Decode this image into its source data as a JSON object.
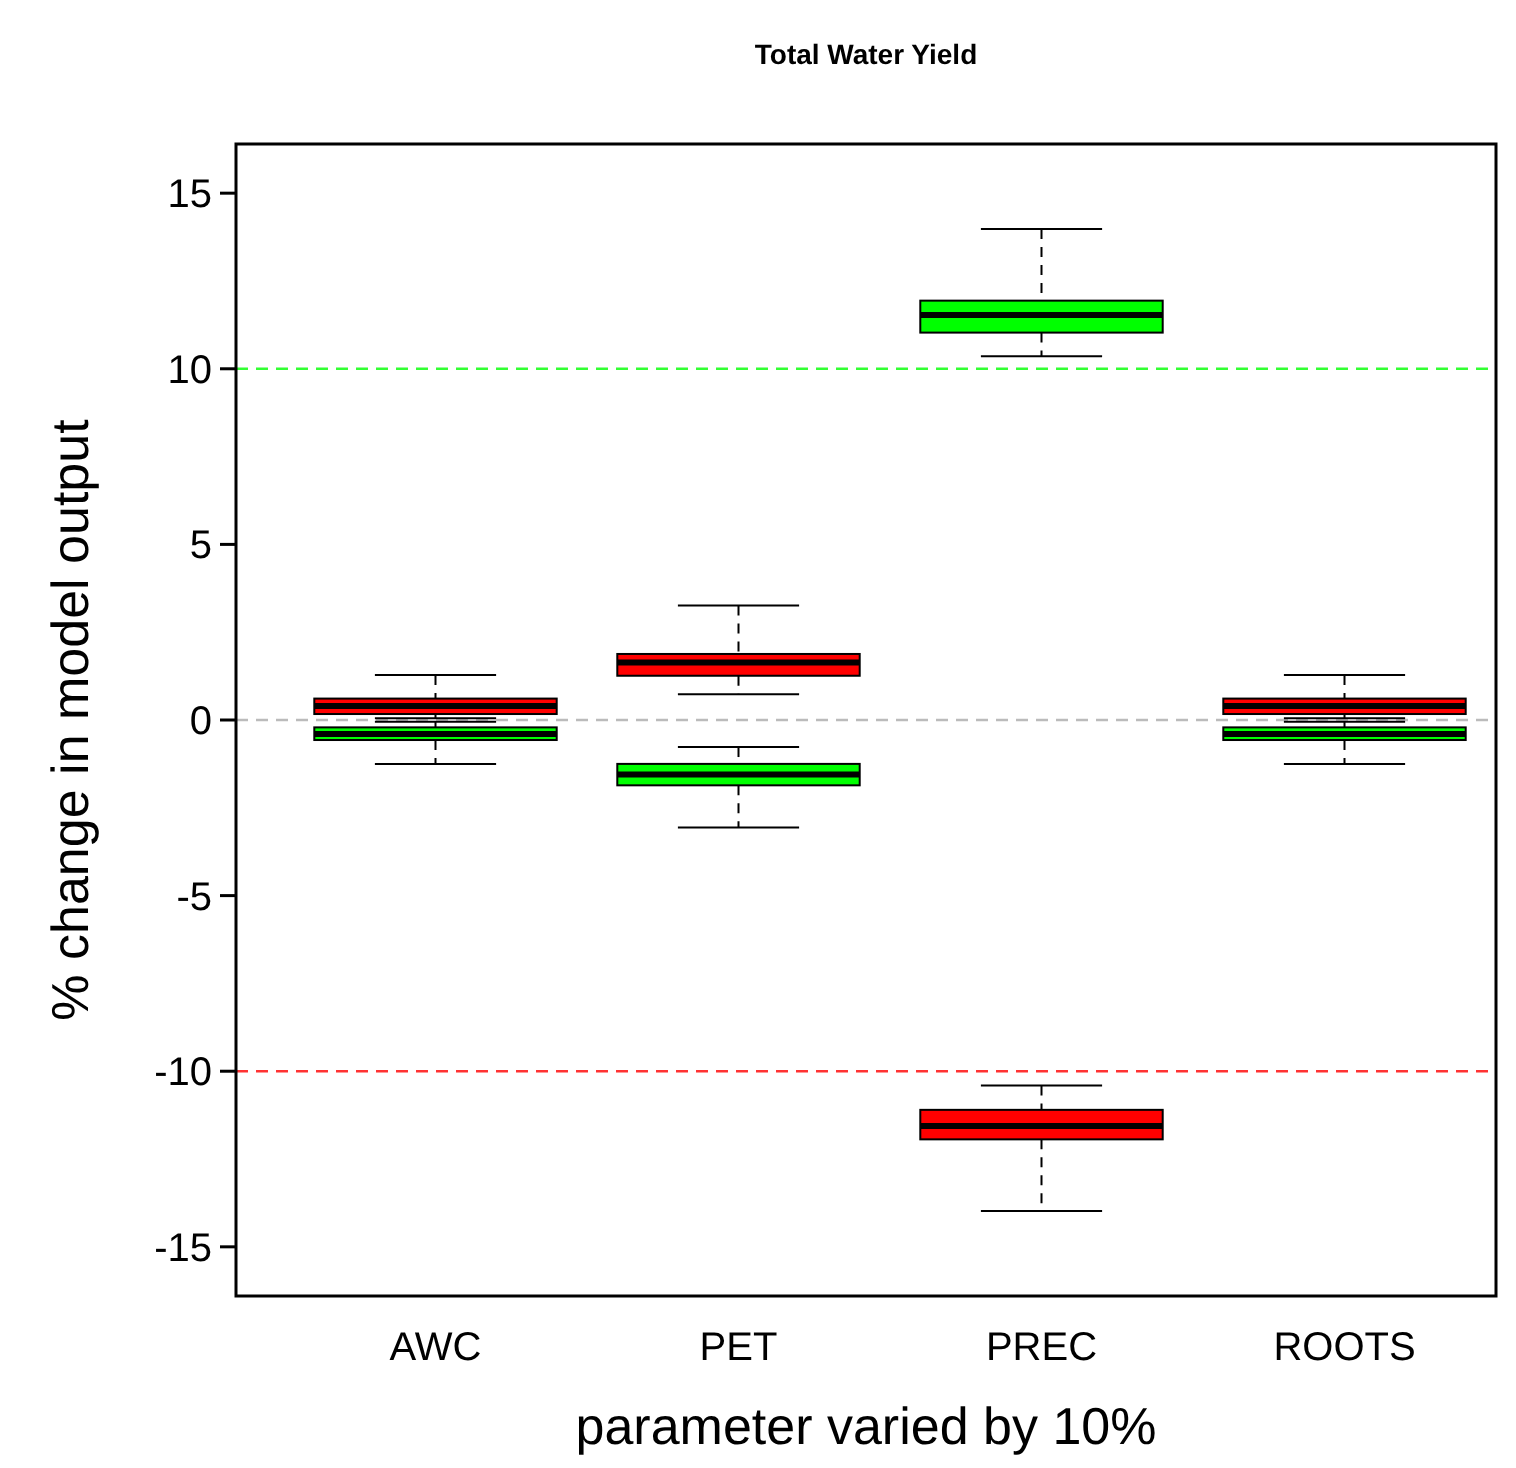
{
  "chart_data": {
    "type": "box",
    "title": "Total Water Yield",
    "xlabel": "parameter varied by 10%",
    "ylabel": "% change in model output",
    "categories": [
      "AWC",
      "PET",
      "PREC",
      "ROOTS"
    ],
    "series": [
      {
        "color": "#ff0000",
        "boxes": [
          {
            "low": 0.05,
            "q1": 0.17,
            "median": 0.4,
            "q3": 0.61,
            "high": 1.28
          },
          {
            "low": 0.73,
            "q1": 1.26,
            "median": 1.64,
            "q3": 1.88,
            "high": 3.26
          },
          {
            "low": -13.98,
            "q1": -11.94,
            "median": -11.56,
            "q3": -11.1,
            "high": -10.41
          },
          {
            "low": 0.05,
            "q1": 0.17,
            "median": 0.4,
            "q3": 0.61,
            "high": 1.28
          }
        ]
      },
      {
        "color": "#00ff00",
        "boxes": [
          {
            "low": -1.25,
            "q1": -0.57,
            "median": -0.4,
            "q3": -0.21,
            "high": -0.05
          },
          {
            "low": -3.06,
            "q1": -1.86,
            "median": -1.55,
            "q3": -1.25,
            "high": -0.77
          },
          {
            "low": 10.36,
            "q1": 11.03,
            "median": 11.53,
            "q3": 11.94,
            "high": 13.98
          },
          {
            "low": -1.25,
            "q1": -0.57,
            "median": -0.4,
            "q3": -0.21,
            "high": -0.05
          }
        ]
      }
    ],
    "ylim": [
      -16.4,
      16.4
    ],
    "yticks": [
      -15,
      -10,
      -5,
      0,
      5,
      10,
      15
    ],
    "grid": false,
    "ref_lines": [
      {
        "axis": "y",
        "value": 10,
        "color": "#33ff33",
        "line_style": "dashed"
      },
      {
        "axis": "y",
        "value": 0,
        "color": "#bbbbbb",
        "line_style": "dashed"
      },
      {
        "axis": "y",
        "value": -10,
        "color": "#ff3333",
        "line_style": "dashed"
      }
    ]
  }
}
